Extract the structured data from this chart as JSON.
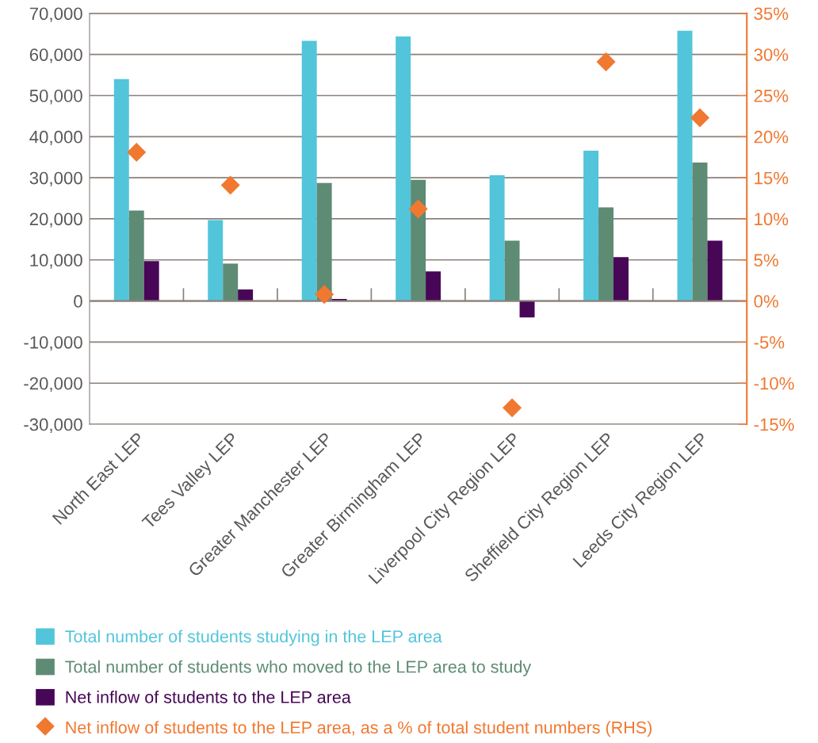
{
  "chart_data": {
    "type": "bar",
    "categories": [
      "North East LEP",
      "Tees Valley LEP",
      "Greater Manchester LEP",
      "Greater Birmingham LEP",
      "Liverpool City Region LEP",
      "Sheffield City Region LEP",
      "Leeds City Region LEP"
    ],
    "series": [
      {
        "name": "Total number of students studying in the LEP area",
        "color": "#52c5da",
        "values": [
          54000,
          19700,
          63300,
          64400,
          30600,
          36600,
          65800
        ]
      },
      {
        "name": "Total number of students who moved to the LEP area to study",
        "color": "#5e8b74",
        "values": [
          22000,
          9100,
          28700,
          29500,
          14700,
          22800,
          33700
        ]
      },
      {
        "name": "Net inflow of students to the LEP area",
        "color": "#470656",
        "values": [
          9700,
          2800,
          500,
          7200,
          -4000,
          10700,
          14700
        ]
      },
      {
        "name": "Net inflow of students to the LEP area, as a % of total student numbers (RHS)",
        "type": "scatter",
        "axis": "y2",
        "marker": "diamond",
        "color": "#f07830",
        "values": [
          18.1,
          14.1,
          0.8,
          11.2,
          -13.0,
          29.1,
          22.3
        ]
      }
    ],
    "ylim": [
      -30000,
      70000
    ],
    "yticks": [
      {
        "value": -30000,
        "label": "-30,000"
      },
      {
        "value": -20000,
        "label": "-20,000"
      },
      {
        "value": -10000,
        "label": "-10,000"
      },
      {
        "value": 0,
        "label": "0"
      },
      {
        "value": 10000,
        "label": "10,000"
      },
      {
        "value": 20000,
        "label": "20,000"
      },
      {
        "value": 30000,
        "label": "30,000"
      },
      {
        "value": 40000,
        "label": "40,000"
      },
      {
        "value": 50000,
        "label": "50,000"
      },
      {
        "value": 60000,
        "label": "60,000"
      },
      {
        "value": 70000,
        "label": "70,000"
      }
    ],
    "y2lim": [
      -15,
      35
    ],
    "y2ticks": [
      {
        "value": -15,
        "label": "-15%"
      },
      {
        "value": -10,
        "label": "-10%"
      },
      {
        "value": -5,
        "label": "-5%"
      },
      {
        "value": 0,
        "label": "0%"
      },
      {
        "value": 5,
        "label": "5%"
      },
      {
        "value": 10,
        "label": "10%"
      },
      {
        "value": 15,
        "label": "15%"
      },
      {
        "value": 20,
        "label": "20%"
      },
      {
        "value": 25,
        "label": "25%"
      },
      {
        "value": 30,
        "label": "30%"
      },
      {
        "value": 35,
        "label": "35%"
      }
    ],
    "grid": "y",
    "legend": "bottom"
  }
}
